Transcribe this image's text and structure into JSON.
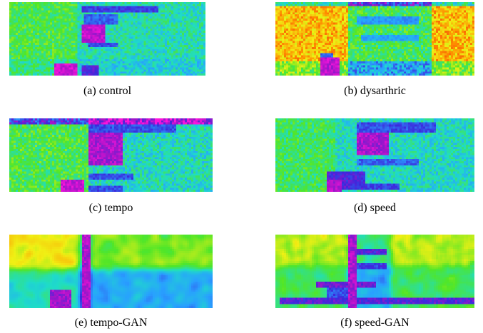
{
  "figure": {
    "panels": [
      {
        "id": "a",
        "caption": "(a) control"
      },
      {
        "id": "b",
        "caption": "(b) dysarthric"
      },
      {
        "id": "c",
        "caption": "(c) tempo"
      },
      {
        "id": "d",
        "caption": "(d) speed"
      },
      {
        "id": "e",
        "caption": "(e) tempo-GAN"
      },
      {
        "id": "f",
        "caption": "(f) speed-GAN"
      }
    ]
  }
}
